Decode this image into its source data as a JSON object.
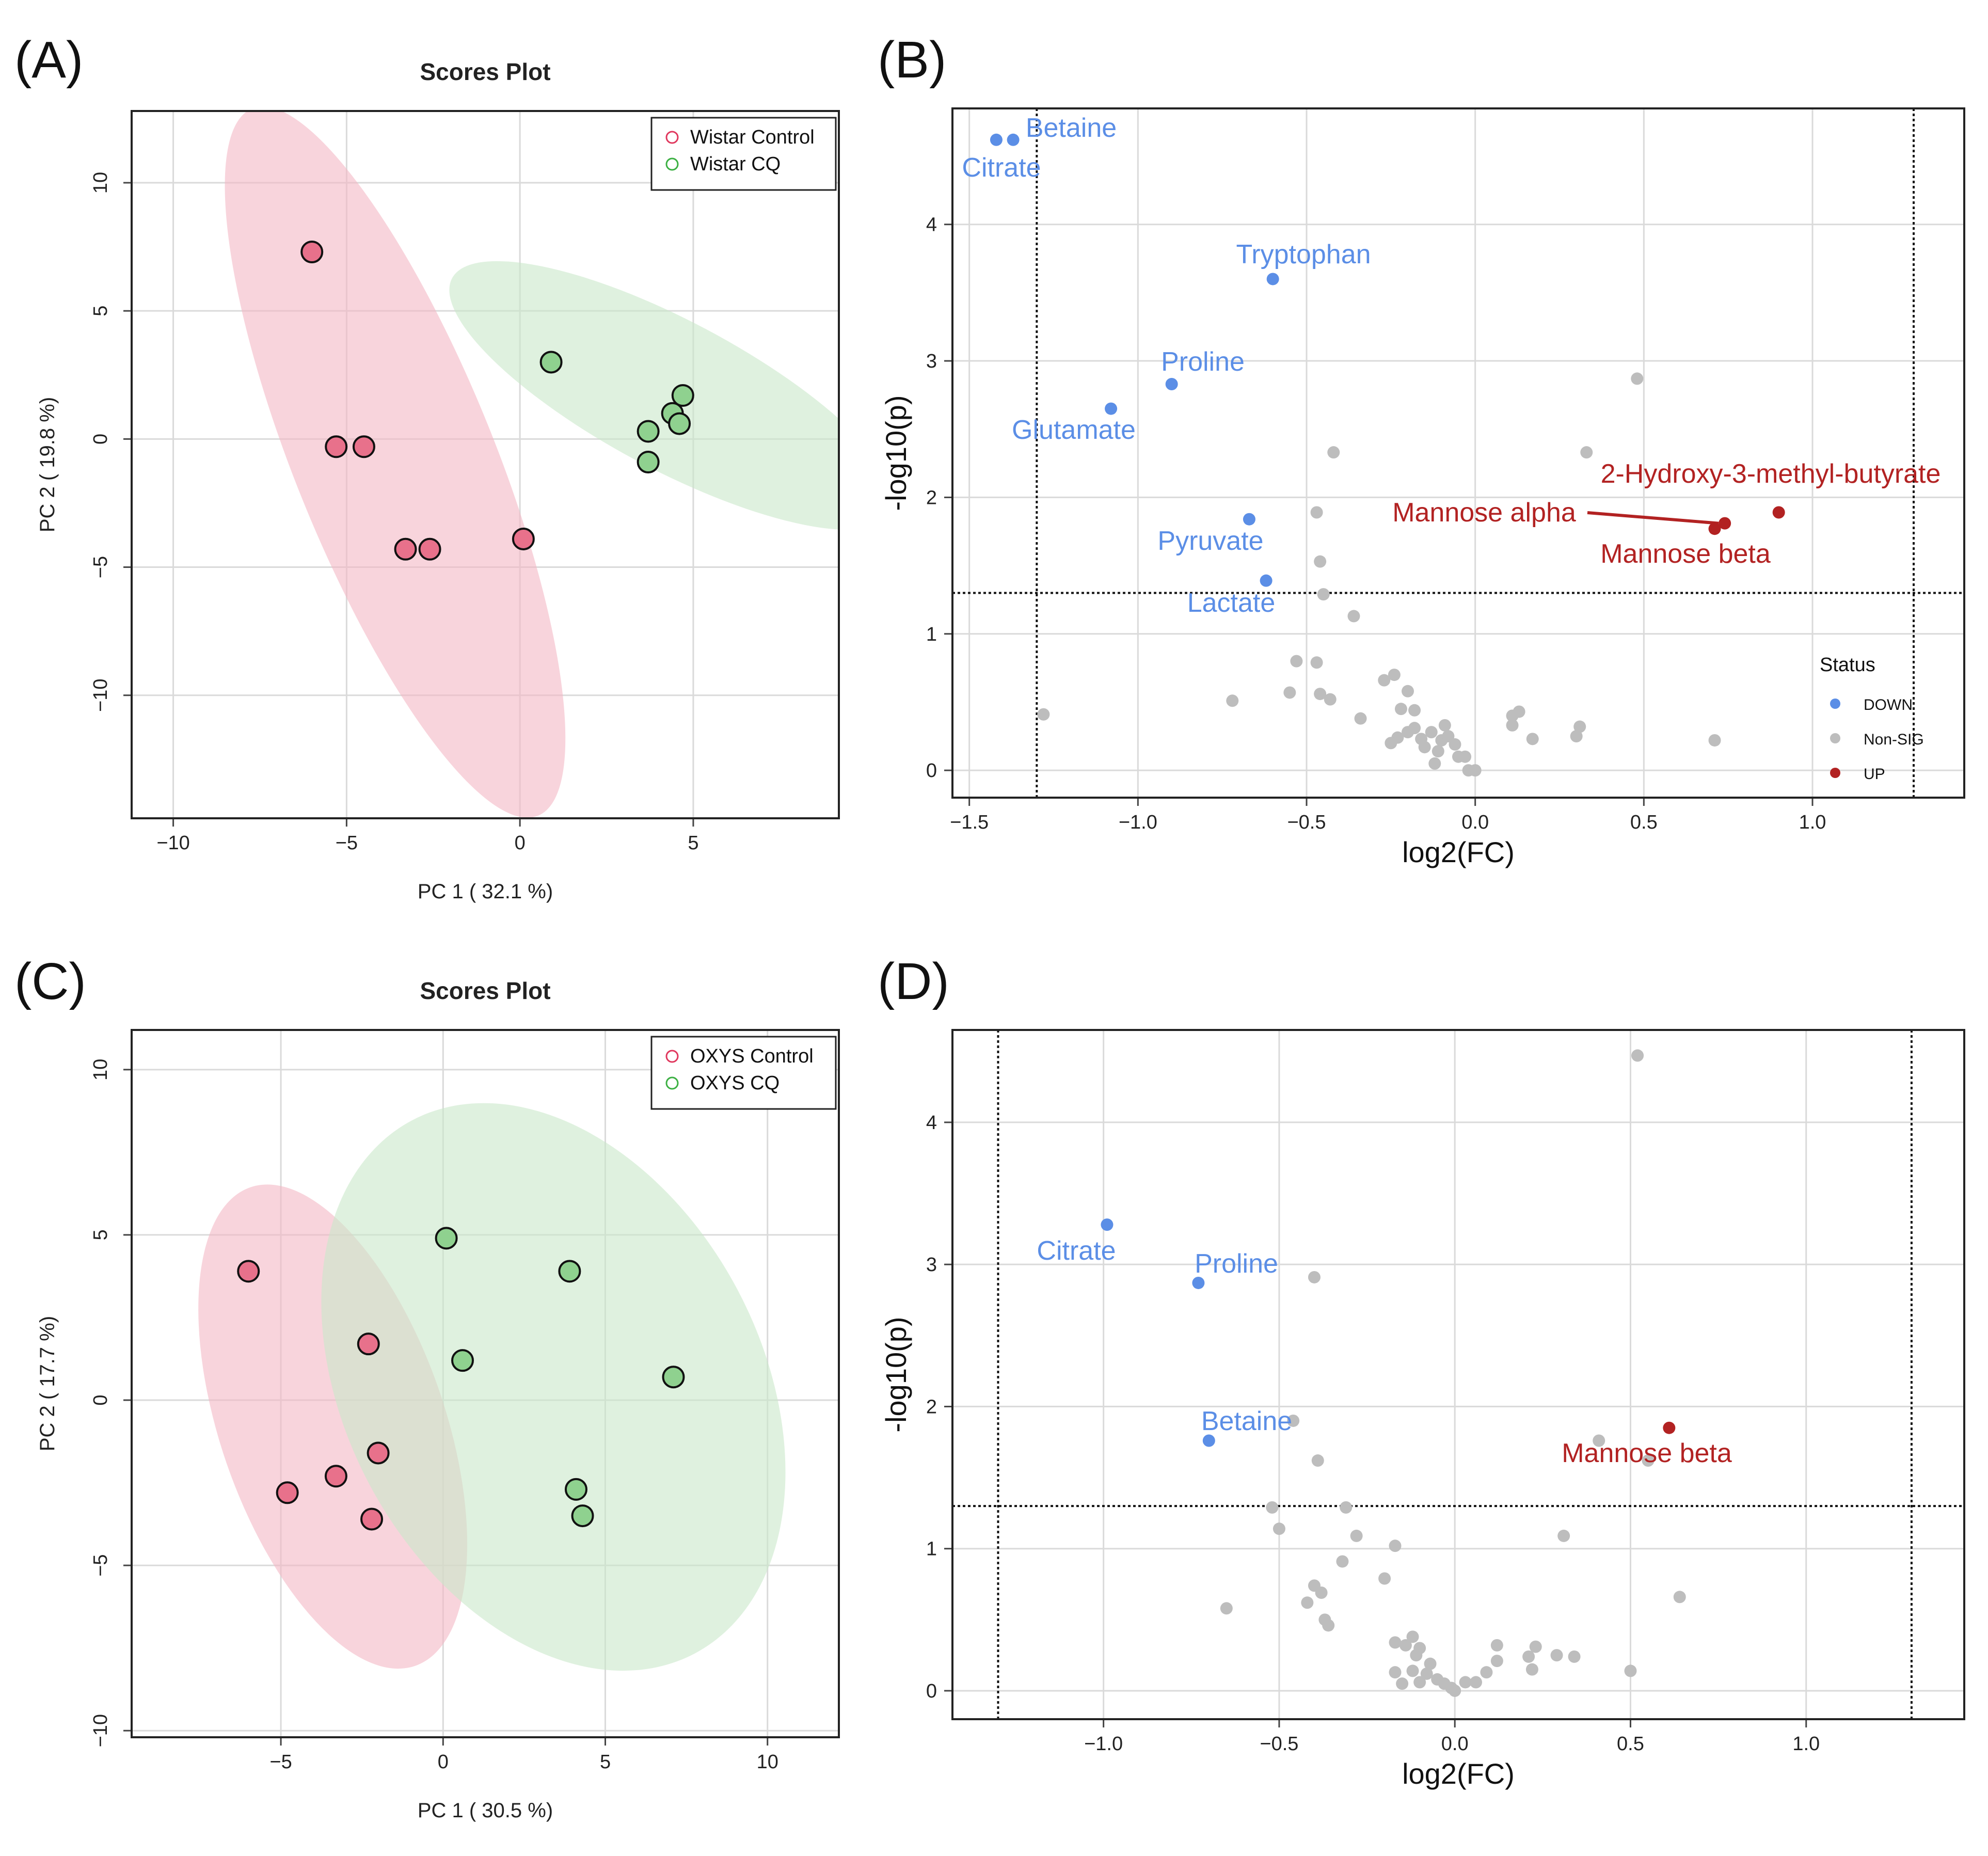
{
  "figure": {
    "panel_labels": [
      "(A)",
      "(B)",
      "(C)",
      "(D)"
    ]
  },
  "chart_data": [
    {
      "panel": "(A)",
      "type": "scatter",
      "title": "Scores Plot",
      "xlabel": "PC 1 ( 32.1 %)",
      "ylabel": "PC 2 ( 19.8 %)",
      "xlim": [
        -11.2,
        9.2
      ],
      "ylim": [
        -14.8,
        12.8
      ],
      "xticks": [
        -10,
        -5,
        0,
        5
      ],
      "yticks": [
        -10,
        -5,
        0,
        5,
        10
      ],
      "xtick_labels": [
        "−10",
        "−5",
        "0",
        "5"
      ],
      "ytick_labels": [
        "−10",
        "−5",
        "0",
        "5",
        "10"
      ],
      "legend_position": "top-right",
      "series": [
        {
          "name": "Wistar Control",
          "color": "#e8718b",
          "ellipse_color": "#f4b8c4",
          "points": [
            [
              -6.0,
              7.3
            ],
            [
              -5.3,
              -0.3
            ],
            [
              -4.5,
              -0.3
            ],
            [
              -3.3,
              -4.3
            ],
            [
              -2.6,
              -4.3
            ],
            [
              0.1,
              -3.9
            ]
          ],
          "ellipse": {
            "cx": -3.6,
            "cy": -0.9,
            "rx": 11.0,
            "ry": 3.9,
            "angle_deg": -68
          }
        },
        {
          "name": "Wistar CQ",
          "color": "#8fd18f",
          "ellipse_color": "#c9e8c9",
          "points": [
            [
              0.9,
              3.0
            ],
            [
              3.7,
              0.3
            ],
            [
              3.7,
              -0.9
            ],
            [
              4.4,
              1.0
            ],
            [
              4.6,
              0.6
            ],
            [
              4.7,
              1.7
            ]
          ],
          "ellipse": {
            "cx": 4.4,
            "cy": 1.7,
            "rx": 7.2,
            "ry": 2.9,
            "angle_deg": -28
          }
        }
      ]
    },
    {
      "panel": "(B)",
      "type": "scatter",
      "title": "",
      "xlabel": "log2(FC)",
      "ylabel": "-log10(p)",
      "xlim": [
        -1.55,
        1.45
      ],
      "ylim": [
        -0.2,
        4.85
      ],
      "xticks": [
        -1.5,
        -1.0,
        -0.5,
        0.0,
        0.5,
        1.0
      ],
      "yticks": [
        0,
        1,
        2,
        3,
        4
      ],
      "xtick_labels": [
        "−1.5",
        "−1.0",
        "−0.5",
        "0.0",
        "0.5",
        "1.0"
      ],
      "ytick_labels": [
        "0",
        "1",
        "2",
        "3",
        "4"
      ],
      "thresholds": {
        "x": [
          -1.3,
          1.3
        ],
        "y": 1.3
      },
      "legend": {
        "title": "Status",
        "position": "right",
        "entries": [
          "DOWN",
          "Non-SIG",
          "UP"
        ],
        "colors": [
          "#5b8ee6",
          "#bdbdbd",
          "#b22222"
        ]
      },
      "down": [
        {
          "label": "Betaine",
          "x": -1.37,
          "y": 4.62
        },
        {
          "label": "Citrate",
          "x": -1.42,
          "y": 4.62
        },
        {
          "label": "Tryptophan",
          "x": -0.6,
          "y": 3.6
        },
        {
          "label": "Proline",
          "x": -0.9,
          "y": 2.83
        },
        {
          "label": "Glutamate",
          "x": -1.08,
          "y": 2.65
        },
        {
          "label": "Pyruvate",
          "x": -0.67,
          "y": 1.84
        },
        {
          "label": "Lactate",
          "x": -0.62,
          "y": 1.39
        }
      ],
      "up": [
        {
          "label": "2-Hydroxy-3-methyl-butyrate",
          "x": 0.9,
          "y": 1.89
        },
        {
          "label": "Mannose alpha",
          "x": 0.74,
          "y": 1.81
        },
        {
          "label": "Mannose beta",
          "x": 0.71,
          "y": 1.77
        }
      ],
      "nonsig": [
        [
          -1.28,
          0.41
        ],
        [
          0.48,
          2.87
        ],
        [
          0.33,
          2.33
        ],
        [
          -0.42,
          2.33
        ],
        [
          -0.47,
          1.89
        ],
        [
          -0.46,
          1.53
        ],
        [
          -0.45,
          1.29
        ],
        [
          -0.36,
          1.13
        ],
        [
          -0.53,
          0.8
        ],
        [
          -0.47,
          0.79
        ],
        [
          -0.72,
          0.51
        ],
        [
          -0.55,
          0.57
        ],
        [
          -0.46,
          0.56
        ],
        [
          -0.43,
          0.52
        ],
        [
          -0.34,
          0.38
        ],
        [
          -0.27,
          0.66
        ],
        [
          -0.24,
          0.7
        ],
        [
          -0.22,
          0.45
        ],
        [
          -0.2,
          0.58
        ],
        [
          -0.18,
          0.44
        ],
        [
          -0.23,
          0.24
        ],
        [
          -0.2,
          0.28
        ],
        [
          -0.18,
          0.31
        ],
        [
          -0.16,
          0.23
        ],
        [
          -0.15,
          0.17
        ],
        [
          -0.13,
          0.28
        ],
        [
          -0.1,
          0.22
        ],
        [
          -0.09,
          0.33
        ],
        [
          -0.08,
          0.25
        ],
        [
          -0.11,
          0.14
        ],
        [
          -0.06,
          0.19
        ],
        [
          -0.05,
          0.1
        ],
        [
          -0.03,
          0.1
        ],
        [
          -0.02,
          0.0
        ],
        [
          0.0,
          0.0
        ],
        [
          0.11,
          0.4
        ],
        [
          0.13,
          0.43
        ],
        [
          0.11,
          0.33
        ],
        [
          0.17,
          0.23
        ],
        [
          0.3,
          0.25
        ],
        [
          0.31,
          0.32
        ],
        [
          0.71,
          0.22
        ],
        [
          -0.25,
          0.2
        ],
        [
          -0.12,
          0.05
        ]
      ]
    },
    {
      "panel": "(C)",
      "type": "scatter",
      "title": "Scores Plot",
      "xlabel": "PC 1 ( 30.5 %)",
      "ylabel": "PC 2 ( 17.7 %)",
      "xlim": [
        -9.6,
        12.2
      ],
      "ylim": [
        -10.2,
        11.2
      ],
      "xticks": [
        -5,
        0,
        5,
        10
      ],
      "yticks": [
        -10,
        -5,
        0,
        5,
        10
      ],
      "xtick_labels": [
        "−5",
        "0",
        "5",
        "10"
      ],
      "ytick_labels": [
        "−10",
        "−5",
        "0",
        "5",
        "10"
      ],
      "legend_position": "top-right",
      "series": [
        {
          "name": "OXYS Control",
          "color": "#e8718b",
          "ellipse_color": "#f4b8c4",
          "points": [
            [
              -6.0,
              3.9
            ],
            [
              -2.3,
              1.7
            ],
            [
              -2.0,
              -1.6
            ],
            [
              -3.3,
              -2.3
            ],
            [
              -4.8,
              -2.8
            ],
            [
              -2.2,
              -3.6
            ]
          ],
          "ellipse": {
            "cx": -3.4,
            "cy": -0.8,
            "rx": 7.8,
            "ry": 3.4,
            "angle_deg": -71
          }
        },
        {
          "name": "OXYS CQ",
          "color": "#8fd18f",
          "ellipse_color": "#c9e8c9",
          "points": [
            [
              0.1,
              4.9
            ],
            [
              3.9,
              3.9
            ],
            [
              0.6,
              1.2
            ],
            [
              7.1,
              0.7
            ],
            [
              4.1,
              -2.7
            ],
            [
              4.3,
              -3.5
            ]
          ],
          "ellipse": {
            "cx": 3.4,
            "cy": 0.4,
            "rx": 9.3,
            "ry": 6.3,
            "angle_deg": -62
          }
        }
      ]
    },
    {
      "panel": "(D)",
      "type": "scatter",
      "title": "",
      "xlabel": "log2(FC)",
      "ylabel": "-log10(p)",
      "xlim": [
        -1.43,
        1.45
      ],
      "ylim": [
        -0.2,
        4.65
      ],
      "xticks": [
        -1.0,
        -0.5,
        0.0,
        0.5,
        1.0
      ],
      "yticks": [
        0,
        1,
        2,
        3,
        4
      ],
      "xtick_labels": [
        "−1.0",
        "−0.5",
        "0.0",
        "0.5",
        "1.0"
      ],
      "ytick_labels": [
        "0",
        "1",
        "2",
        "3",
        "4"
      ],
      "thresholds": {
        "x": [
          -1.3,
          1.3
        ],
        "y": 1.3
      },
      "down": [
        {
          "label": "Citrate",
          "x": -0.99,
          "y": 3.28
        },
        {
          "label": "Proline",
          "x": -0.73,
          "y": 2.87
        },
        {
          "label": "Betaine",
          "x": -0.7,
          "y": 1.76
        }
      ],
      "up": [
        {
          "label": "Mannose beta",
          "x": 0.61,
          "y": 1.85
        }
      ],
      "nonsig": [
        [
          0.52,
          4.47
        ],
        [
          -0.4,
          2.91
        ],
        [
          -0.46,
          1.9
        ],
        [
          -0.39,
          1.62
        ],
        [
          0.41,
          1.76
        ],
        [
          0.55,
          1.62
        ],
        [
          -0.52,
          1.29
        ],
        [
          -0.31,
          1.29
        ],
        [
          -0.5,
          1.14
        ],
        [
          -0.28,
          1.09
        ],
        [
          0.31,
          1.09
        ],
        [
          -0.17,
          1.02
        ],
        [
          -0.32,
          0.91
        ],
        [
          -0.2,
          0.79
        ],
        [
          -0.4,
          0.74
        ],
        [
          -0.38,
          0.69
        ],
        [
          -0.42,
          0.62
        ],
        [
          -0.65,
          0.58
        ],
        [
          -0.37,
          0.5
        ],
        [
          -0.36,
          0.46
        ],
        [
          0.64,
          0.66
        ],
        [
          -0.17,
          0.34
        ],
        [
          -0.14,
          0.32
        ],
        [
          -0.12,
          0.38
        ],
        [
          -0.1,
          0.3
        ],
        [
          -0.11,
          0.25
        ],
        [
          -0.07,
          0.19
        ],
        [
          -0.17,
          0.13
        ],
        [
          -0.12,
          0.14
        ],
        [
          -0.08,
          0.12
        ],
        [
          -0.15,
          0.05
        ],
        [
          -0.1,
          0.06
        ],
        [
          -0.05,
          0.08
        ],
        [
          -0.03,
          0.05
        ],
        [
          -0.01,
          0.02
        ],
        [
          0.0,
          0.0
        ],
        [
          0.03,
          0.06
        ],
        [
          0.06,
          0.06
        ],
        [
          0.09,
          0.13
        ],
        [
          0.12,
          0.21
        ],
        [
          0.12,
          0.32
        ],
        [
          0.21,
          0.24
        ],
        [
          0.22,
          0.15
        ],
        [
          0.23,
          0.31
        ],
        [
          0.29,
          0.25
        ],
        [
          0.34,
          0.24
        ],
        [
          0.5,
          0.14
        ]
      ]
    }
  ]
}
